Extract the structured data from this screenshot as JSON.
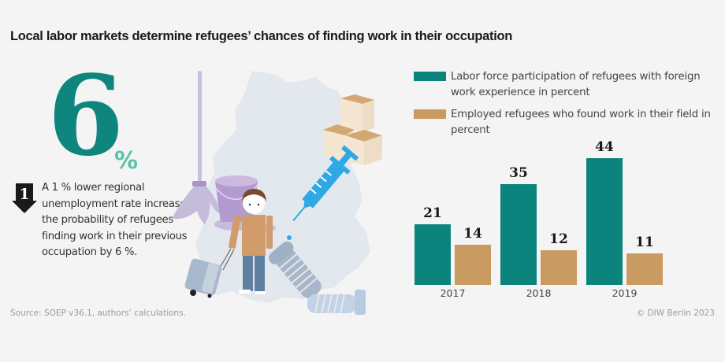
{
  "title": "Local labor markets determine refugees’ chances of finding work in their occupation",
  "highlight": {
    "value": "6",
    "unit": "%",
    "badge_number": "1",
    "description": "A 1 % lower regional unemployment rate increases the probability of refugees finding work in their previous occupation by 6 %."
  },
  "legend": [
    {
      "label": "Labor force participation of refugees with foreign work experience in percent",
      "color": "#0a847c"
    },
    {
      "label": "Employed refugees who found work in their field in percent",
      "color": "#c99a62"
    }
  ],
  "chart_data": {
    "type": "bar",
    "title": "",
    "categories": [
      "2017",
      "2018",
      "2019"
    ],
    "series": [
      {
        "name": "Labor force participation of refugees with foreign work experience in percent",
        "color": "#0a847c",
        "values": [
          21,
          35,
          44
        ]
      },
      {
        "name": "Employed refugees who found work in their field in percent",
        "color": "#c99a62",
        "values": [
          14,
          12,
          11
        ]
      }
    ],
    "xlabel": "",
    "ylabel": "",
    "ylim": [
      0,
      44
    ],
    "grid": false,
    "legend_position": "top",
    "data_labels": true
  },
  "footer": {
    "source": "Source: SOEP v36.1, authors’ calculations.",
    "copyright": "© DIW Berlin 2023"
  },
  "colors": {
    "teal": "#0a847c",
    "teal_light": "#5cbfa7",
    "tan": "#c99a62",
    "background": "#f4f4f4"
  },
  "illustration": {
    "icons": [
      "germany-map-icon",
      "mop-icon",
      "bucket-icon",
      "boxes-icon",
      "syringe-icon",
      "person-icon",
      "suitcase-icon",
      "screw-icon",
      "bolt-icon"
    ]
  }
}
